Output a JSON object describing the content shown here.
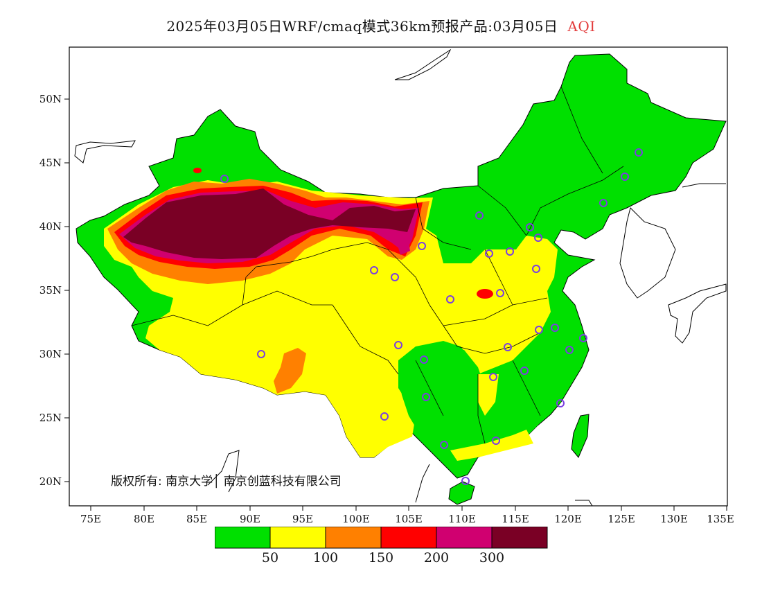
{
  "title": {
    "main": "2025年03月05日WRF/cmaq模式36km预报产品:03月05日",
    "variable": "AQI"
  },
  "axes": {
    "lat_labels": [
      "50N",
      "45N",
      "40N",
      "35N",
      "30N",
      "25N",
      "20N"
    ],
    "lon_labels": [
      "75E",
      "80E",
      "85E",
      "90E",
      "95E",
      "100E",
      "105E",
      "110E",
      "115E",
      "120E",
      "125E",
      "130E",
      "135E"
    ]
  },
  "copyright": "版权所有: 南京大学│ 南京创蓝科技有限公司",
  "legend": {
    "colors": [
      "#00e000",
      "#ffff00",
      "#ff8000",
      "#ff0000",
      "#d00070",
      "#7a0025"
    ],
    "labels": [
      "50",
      "100",
      "150",
      "200",
      "300"
    ]
  },
  "colors": {
    "good": "#00e000",
    "moderate": "#ffff00",
    "sensitive": "#ff8000",
    "unhealthy": "#ff0000",
    "very_unhealthy": "#d00070",
    "hazardous": "#7a0025",
    "station_marker": "#7b3fe0"
  }
}
